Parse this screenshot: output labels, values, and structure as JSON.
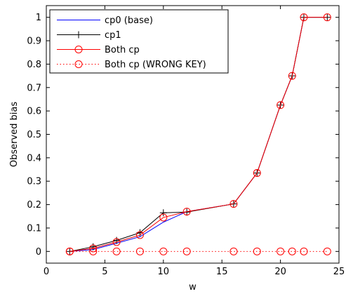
{
  "chart_data": {
    "type": "line",
    "title": "",
    "xlabel": "w",
    "ylabel": "Observed bias",
    "xlim": [
      0,
      25
    ],
    "ylim": [
      -0.05,
      1.05
    ],
    "xticks": [
      0,
      5,
      10,
      15,
      20,
      25
    ],
    "yticks": [
      0,
      0.1,
      0.2,
      0.3,
      0.4,
      0.5,
      0.6,
      0.7,
      0.8,
      0.9,
      1
    ],
    "xtick_labels": [
      "0",
      "5",
      "10",
      "15",
      "20",
      "25"
    ],
    "ytick_labels": [
      "0",
      "0.1",
      "0.2",
      "0.3",
      "0.4",
      "0.5",
      "0.6",
      "0.7",
      "0.8",
      "0.9",
      "1"
    ],
    "grid": false,
    "legend_position": "top-left",
    "series": [
      {
        "name": "cp0 (base)",
        "color": "#0000ff",
        "line": "solid",
        "marker": "none",
        "x": [
          2,
          4,
          6,
          8,
          10,
          12,
          16,
          18,
          20,
          21,
          22,
          24
        ],
        "y": [
          0.0,
          0.008,
          0.035,
          0.063,
          0.125,
          0.17,
          0.203,
          0.335,
          0.625,
          0.75,
          1.0,
          1.0
        ]
      },
      {
        "name": "cp1",
        "color": "#000000",
        "line": "solid",
        "marker": "plus",
        "x": [
          2,
          4,
          6,
          8,
          10,
          12,
          16,
          18,
          20,
          21,
          22,
          24
        ],
        "y": [
          0.0,
          0.02,
          0.047,
          0.08,
          0.165,
          0.168,
          0.203,
          0.335,
          0.625,
          0.75,
          1.0,
          1.0
        ]
      },
      {
        "name": "Both cp",
        "color": "#ff0000",
        "line": "solid",
        "marker": "circle",
        "x": [
          2,
          4,
          6,
          8,
          10,
          12,
          16,
          18,
          20,
          21,
          22,
          24
        ],
        "y": [
          0.0,
          0.013,
          0.04,
          0.07,
          0.145,
          0.17,
          0.203,
          0.335,
          0.625,
          0.75,
          1.0,
          1.0
        ]
      },
      {
        "name": "Both cp (WRONG KEY)",
        "color": "#ff0000",
        "line": "dotted",
        "marker": "circle",
        "x": [
          2,
          4,
          6,
          8,
          10,
          12,
          16,
          18,
          20,
          21,
          22,
          24
        ],
        "y": [
          0,
          0,
          0,
          0,
          0,
          0,
          0,
          0,
          0,
          0,
          0,
          0
        ]
      }
    ]
  }
}
